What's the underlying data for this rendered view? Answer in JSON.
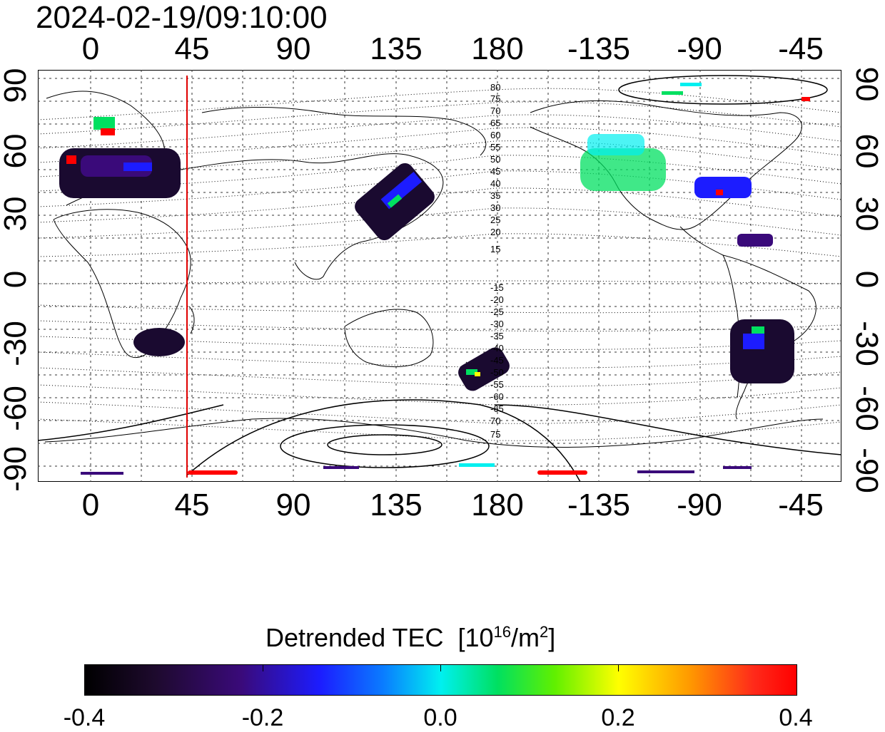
{
  "timestamp": "2024-02-19/09:10:00",
  "map": {
    "longitude_ticks": [
      "0",
      "45",
      "90",
      "135",
      "180",
      "-135",
      "-90",
      "-45"
    ],
    "latitude_ticks": [
      "90",
      "60",
      "30",
      "0",
      "-30",
      "-60",
      "-90"
    ],
    "grid": true,
    "marker_line_longitude": 45,
    "marker_line_color": "#e00000",
    "contour_labels_north": [
      "80",
      "75",
      "70",
      "65",
      "60",
      "55",
      "50",
      "45",
      "40",
      "35",
      "30",
      "25",
      "20",
      "15"
    ],
    "contour_labels_south": [
      "-15",
      "-20",
      "-25",
      "-30",
      "-35",
      "-40",
      "-45",
      "-50",
      "-55",
      "-60",
      "-65",
      "70",
      "75"
    ]
  },
  "colorbar": {
    "title": "Detrended TEC",
    "unit_prefix": "[10",
    "unit_exp": "16",
    "unit_mid": "/m",
    "unit_exp2": "2",
    "unit_suffix": "]",
    "ticks": [
      "-0.4",
      "-0.2",
      "0.0",
      "0.2",
      "0.4"
    ],
    "range": [
      -0.4,
      0.4
    ],
    "colors": [
      "#000000",
      "#3a0a7a",
      "#1c1cff",
      "#00f0f0",
      "#00e060",
      "#ffff00",
      "#ff9900",
      "#ff0000"
    ]
  }
}
